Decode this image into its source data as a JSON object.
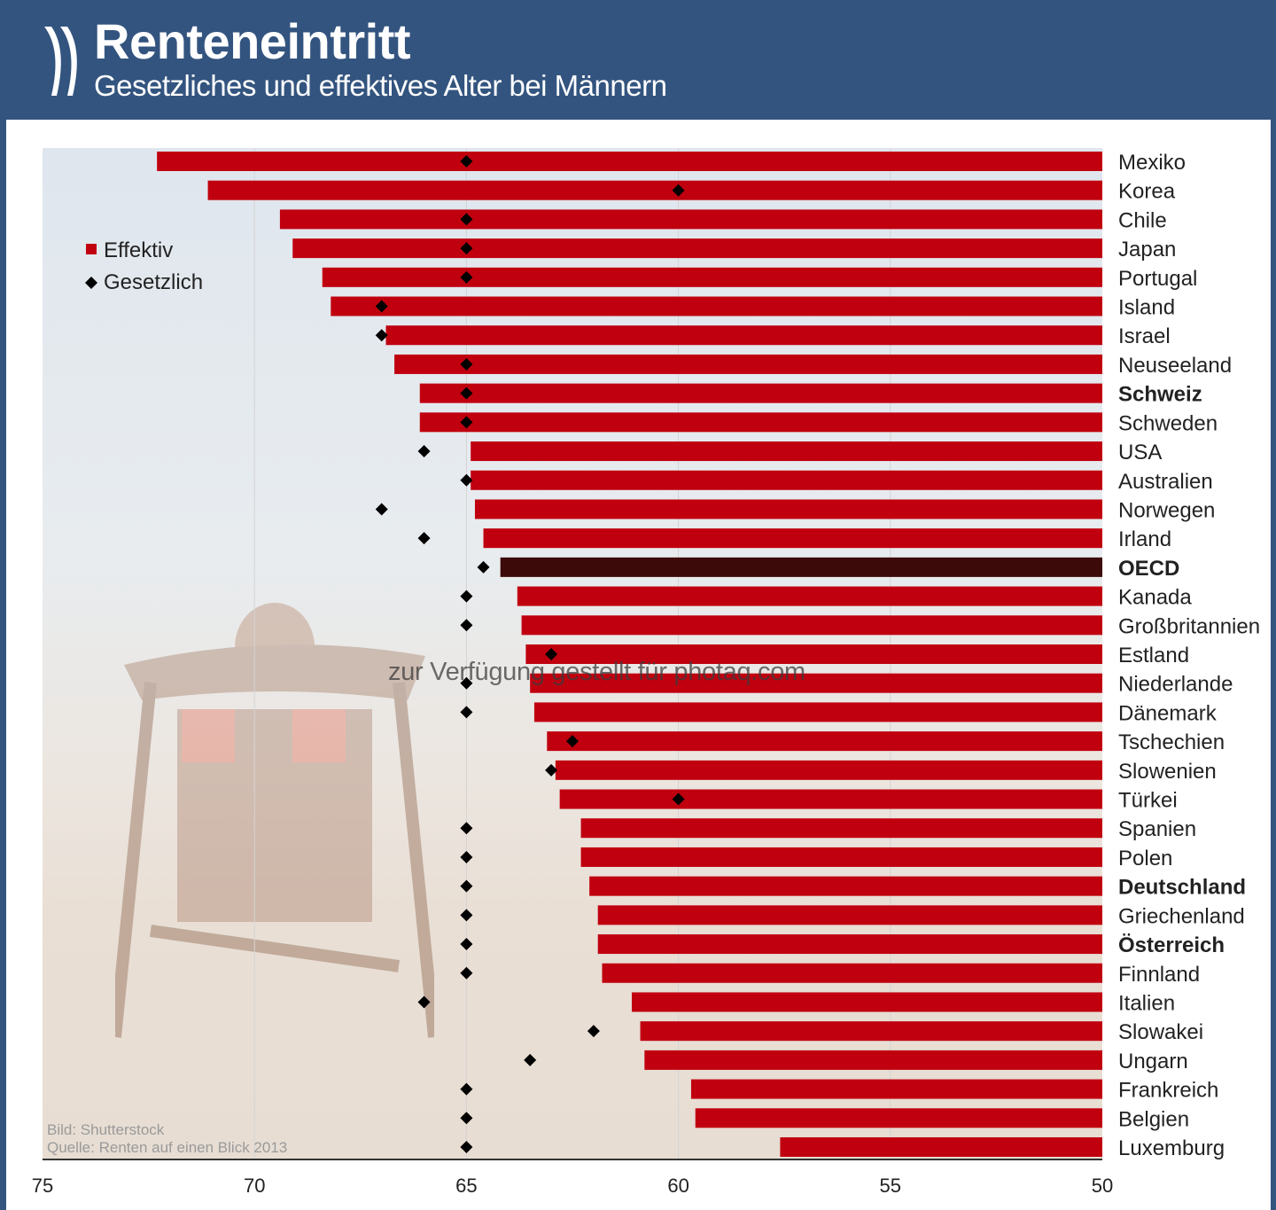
{
  "header": {
    "title": "Renteneintritt",
    "subtitle": "Gesetzliches und effektives Alter bei Männern",
    "logo_icon": "double-chevron-logo"
  },
  "credits": {
    "image": "Bild: Shutterstock",
    "source": "Quelle: Renten auf einen Blick 2013"
  },
  "watermark": "zur Verfügung gestellt für photaq.com",
  "chart_data": {
    "type": "bar",
    "orientation": "horizontal",
    "title": "Renteneintritt",
    "subtitle": "Gesetzliches und effektives Alter bei Männern",
    "x_axis": {
      "range": [
        75,
        50
      ],
      "reversed": true,
      "ticks": [
        75,
        70,
        65,
        60,
        55,
        50
      ]
    },
    "grid": "vertical lines at ticks",
    "legend": {
      "placement": "top-left",
      "entries": [
        {
          "label": "Effektiv",
          "marker": "square",
          "color": "#c0000f"
        },
        {
          "label": "Gesetzlich",
          "marker": "diamond",
          "color": "#000000"
        }
      ]
    },
    "colors": {
      "bar": "#c0000f",
      "highlight_bar": "#3d0a0a",
      "marker": "#000000"
    },
    "categories": [
      "Mexiko",
      "Korea",
      "Chile",
      "Japan",
      "Portugal",
      "Island",
      "Israel",
      "Neuseeland",
      "Schweiz",
      "Schweden",
      "USA",
      "Australien",
      "Norwegen",
      "Irland",
      "OECD",
      "Kanada",
      "Großbritannien",
      "Estland",
      "Niederlande",
      "Dänemark",
      "Tschechien",
      "Slowenien",
      "Türkei",
      "Spanien",
      "Polen",
      "Deutschland",
      "Griechenland",
      "Österreich",
      "Finnland",
      "Italien",
      "Slowakei",
      "Ungarn",
      "Frankreich",
      "Belgien",
      "Luxemburg"
    ],
    "bold_categories": [
      "Schweiz",
      "OECD",
      "Deutschland",
      "Österreich"
    ],
    "highlight_category": "OECD",
    "series": [
      {
        "name": "Effektiv",
        "type": "bar",
        "values": [
          72.3,
          71.1,
          69.4,
          69.1,
          68.4,
          68.2,
          66.9,
          66.7,
          66.1,
          66.1,
          64.9,
          64.9,
          64.8,
          64.6,
          64.2,
          63.8,
          63.7,
          63.6,
          63.5,
          63.4,
          63.1,
          62.9,
          62.8,
          62.3,
          62.3,
          62.1,
          61.9,
          61.9,
          61.8,
          61.1,
          60.9,
          60.8,
          59.7,
          59.6,
          57.6
        ]
      },
      {
        "name": "Gesetzlich",
        "type": "marker",
        "values": [
          65,
          60,
          65,
          65,
          65,
          67,
          67,
          65,
          65,
          65,
          66,
          65,
          67,
          66,
          64.6,
          65,
          65,
          63,
          65,
          65,
          62.5,
          63,
          60,
          65,
          65,
          65,
          65,
          65,
          65,
          66,
          62,
          63.5,
          65,
          65,
          65
        ]
      }
    ]
  }
}
